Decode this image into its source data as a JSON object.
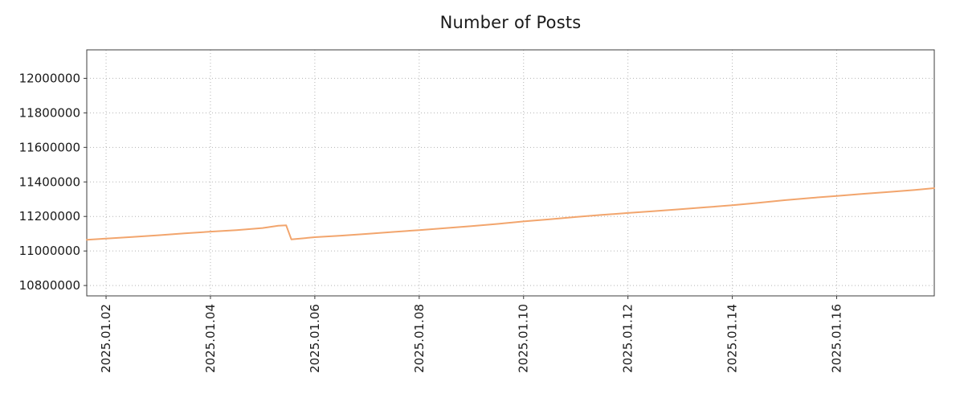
{
  "chart_data": {
    "type": "line",
    "title": "Number of Posts",
    "xlabel": "",
    "ylabel": "",
    "grid": true,
    "legend": "none",
    "xlim": [
      1.63,
      17.87
    ],
    "ylim": [
      10740000,
      12165000
    ],
    "xticks": {
      "positions": [
        2,
        4,
        6,
        8,
        10,
        12,
        14,
        16
      ],
      "labels": [
        "2025.01.02",
        "2025.01.04",
        "2025.01.06",
        "2025.01.08",
        "2025.01.10",
        "2025.01.12",
        "2025.01.14",
        "2025.01.16"
      ]
    },
    "yticks": {
      "positions": [
        10800000,
        11000000,
        11200000,
        11400000,
        11600000,
        11800000,
        12000000
      ],
      "labels": [
        "10800000",
        "11000000",
        "11200000",
        "11400000",
        "11600000",
        "11800000",
        "12000000"
      ]
    },
    "series": [
      {
        "name": "posts",
        "x": [
          1.63,
          2.0,
          2.5,
          3.0,
          3.5,
          4.0,
          4.5,
          5.0,
          5.3,
          5.45,
          5.55,
          6.0,
          6.5,
          7.0,
          7.5,
          8.0,
          8.5,
          9.0,
          9.5,
          10.0,
          10.5,
          11.0,
          11.5,
          12.0,
          12.5,
          13.0,
          13.5,
          14.0,
          14.5,
          15.0,
          15.5,
          16.0,
          16.5,
          17.0,
          17.5,
          17.87
        ],
        "y": [
          11065000,
          11072000,
          11081000,
          11091000,
          11102000,
          11112000,
          11121000,
          11133000,
          11146000,
          11149000,
          11067000,
          11080000,
          11089000,
          11099000,
          11110000,
          11121000,
          11132000,
          11144000,
          11157000,
          11171000,
          11184000,
          11197000,
          11209000,
          11220000,
          11231000,
          11242000,
          11253000,
          11265000,
          11279000,
          11294000,
          11307000,
          11319000,
          11331000,
          11342000,
          11354000,
          11364000
        ]
      }
    ],
    "line_color": "#f2a56d",
    "grid_color": "#b3b3b3",
    "frame_color": "#3c3c3c",
    "text_color": "#1a1a1a",
    "background": "#ffffff"
  }
}
